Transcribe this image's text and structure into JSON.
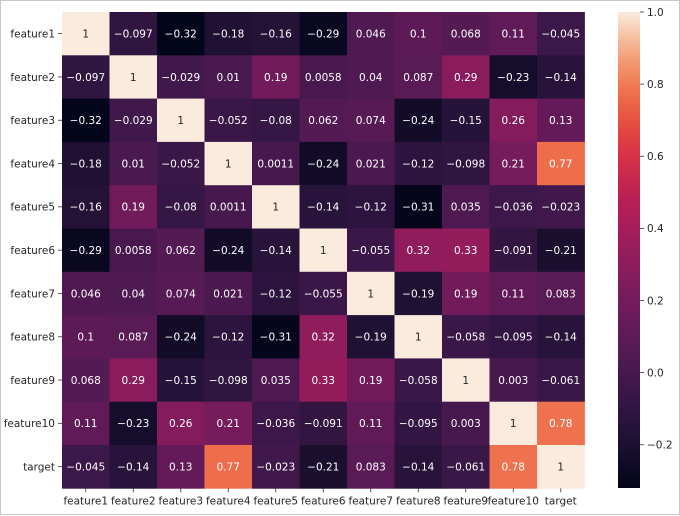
{
  "chart_data": {
    "type": "heatmap",
    "rows": [
      "feature1",
      "feature2",
      "feature3",
      "feature4",
      "feature5",
      "feature6",
      "feature7",
      "feature8",
      "feature9",
      "feature10",
      "target"
    ],
    "columns": [
      "feature1",
      "feature2",
      "feature3",
      "feature4",
      "feature5",
      "feature6",
      "feature7",
      "feature8",
      "feature9",
      "feature10",
      "target"
    ],
    "values": [
      [
        1,
        -0.097,
        -0.32,
        -0.18,
        -0.16,
        -0.29,
        0.046,
        0.1,
        0.068,
        0.11,
        -0.045
      ],
      [
        -0.097,
        1,
        -0.029,
        0.01,
        0.19,
        0.0058,
        0.04,
        0.087,
        0.29,
        -0.23,
        -0.14
      ],
      [
        -0.32,
        -0.029,
        1,
        -0.052,
        -0.08,
        0.062,
        0.074,
        -0.24,
        -0.15,
        0.26,
        0.13
      ],
      [
        -0.18,
        0.01,
        -0.052,
        1,
        0.0011,
        -0.24,
        0.021,
        -0.12,
        -0.098,
        0.21,
        0.77
      ],
      [
        -0.16,
        0.19,
        -0.08,
        0.0011,
        1,
        -0.14,
        -0.12,
        -0.31,
        0.035,
        -0.036,
        -0.023
      ],
      [
        -0.29,
        0.0058,
        0.062,
        -0.24,
        -0.14,
        1,
        -0.055,
        0.32,
        0.33,
        -0.091,
        -0.21
      ],
      [
        0.046,
        0.04,
        0.074,
        0.021,
        -0.12,
        -0.055,
        1,
        -0.19,
        0.19,
        0.11,
        0.083
      ],
      [
        0.1,
        0.087,
        -0.24,
        -0.12,
        -0.31,
        0.32,
        -0.19,
        1,
        -0.058,
        -0.095,
        -0.14
      ],
      [
        0.068,
        0.29,
        -0.15,
        -0.098,
        0.035,
        0.33,
        0.19,
        -0.058,
        1,
        0.003,
        -0.061
      ],
      [
        0.11,
        -0.23,
        0.26,
        0.21,
        -0.036,
        -0.091,
        0.11,
        -0.095,
        0.003,
        1,
        0.78
      ],
      [
        -0.045,
        -0.14,
        0.13,
        0.77,
        -0.023,
        -0.21,
        0.083,
        -0.14,
        -0.061,
        0.78,
        1
      ]
    ],
    "color_range": [
      -0.32,
      1.0
    ],
    "colorbar_ticks": [
      "1.0",
      "0.8",
      "0.6",
      "0.4",
      "0.2",
      "0.0",
      "−0.2"
    ],
    "colorbar_tick_values": [
      1.0,
      0.8,
      0.6,
      0.4,
      0.2,
      0.0,
      -0.2
    ],
    "colormap": "rocket",
    "annotations": true,
    "title": "",
    "xlabel": "",
    "ylabel": ""
  }
}
